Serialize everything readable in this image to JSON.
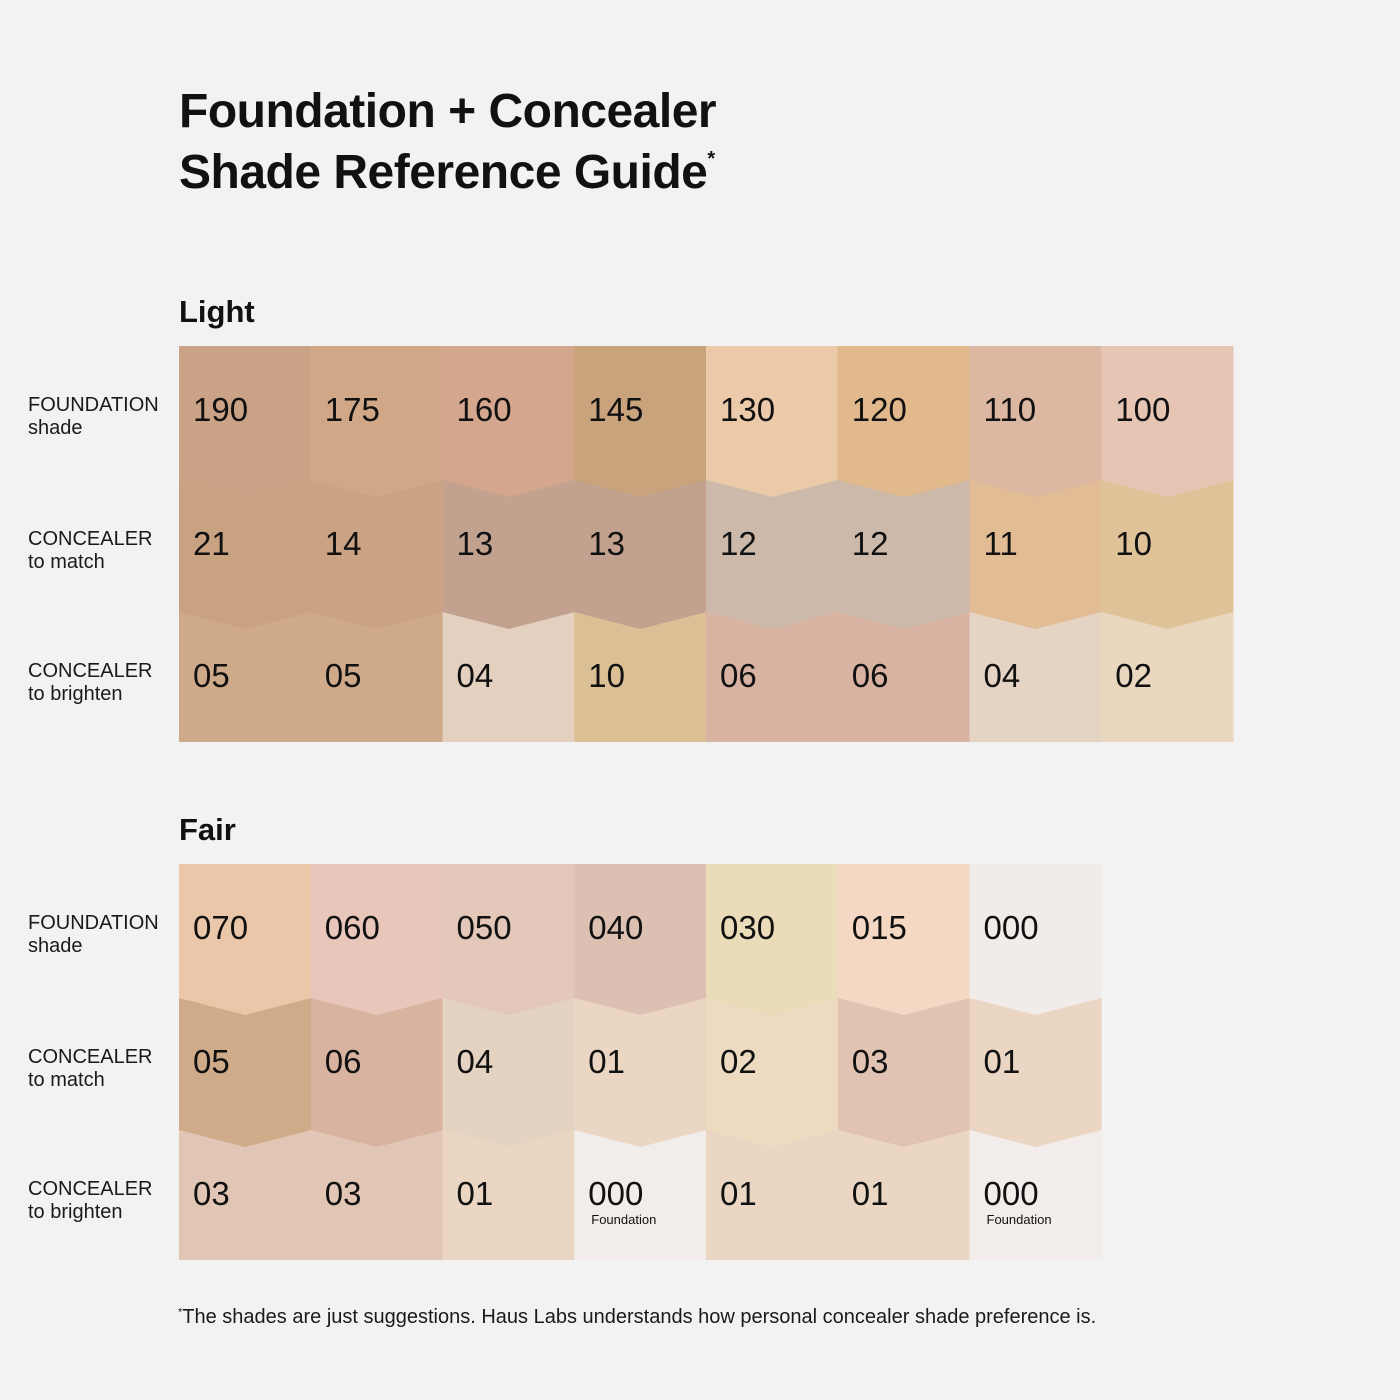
{
  "header": {
    "title": "Foundation + Concealer",
    "subtitle": "Shade Reference Guide",
    "asterisk": "*"
  },
  "row_labels": [
    {
      "line1": "FOUNDATION",
      "line2": "shade"
    },
    {
      "line1": "CONCEALER",
      "line2": "to match"
    },
    {
      "line1": "CONCEALER",
      "line2": "to brighten"
    }
  ],
  "sections": [
    {
      "title": "Light",
      "rows": [
        [
          {
            "v": "190",
            "c": "#caa285"
          },
          {
            "v": "175",
            "c": "#d0a888"
          },
          {
            "v": "160",
            "c": "#d5a68e"
          },
          {
            "v": "145",
            "c": "#c8a37c"
          },
          {
            "v": "130",
            "c": "#ebc9a9"
          },
          {
            "v": "120",
            "c": "#e2b98d"
          },
          {
            "v": "110",
            "c": "#dcb8a3"
          },
          {
            "v": "100",
            "c": "#e7c5b5"
          }
        ],
        [
          {
            "v": "21",
            "c": "#c9a282"
          },
          {
            "v": "14",
            "c": "#c9a383"
          },
          {
            "v": "13",
            "c": "#c2a18e"
          },
          {
            "v": "13",
            "c": "#c2a18e"
          },
          {
            "v": "12",
            "c": "#ccb9a9"
          },
          {
            "v": "12",
            "c": "#ccb9a9"
          },
          {
            "v": "11",
            "c": "#e2bc95"
          },
          {
            "v": "10",
            "c": "#dfc297"
          }
        ],
        [
          {
            "v": "05",
            "c": "#cfaa8a"
          },
          {
            "v": "05",
            "c": "#cfaa8a"
          },
          {
            "v": "04",
            "c": "#e4d0bf"
          },
          {
            "v": "10",
            "c": "#dcc095"
          },
          {
            "v": "06",
            "c": "#d9b3a1"
          },
          {
            "v": "06",
            "c": "#d9b3a1"
          },
          {
            "v": "04",
            "c": "#e5d3c3"
          },
          {
            "v": "02",
            "c": "#e9d8bf"
          }
        ]
      ]
    },
    {
      "title": "Fair",
      "rows": [
        [
          {
            "v": "070",
            "c": "#ebc7aa"
          },
          {
            "v": "060",
            "c": "#e9c6ba"
          },
          {
            "v": "050",
            "c": "#e3c7b8"
          },
          {
            "v": "040",
            "c": "#dcc0b2"
          },
          {
            "v": "030",
            "c": "#eadcb8"
          },
          {
            "v": "015",
            "c": "#f4d8c3"
          },
          {
            "v": "000",
            "c": "#f1ece9"
          }
        ],
        [
          {
            "v": "05",
            "c": "#cfab89"
          },
          {
            "v": "06",
            "c": "#d8b3a0"
          },
          {
            "v": "04",
            "c": "#e5d3c1"
          },
          {
            "v": "01",
            "c": "#ebd6c3"
          },
          {
            "v": "02",
            "c": "#ecdbc1"
          },
          {
            "v": "03",
            "c": "#e0c3b3"
          },
          {
            "v": "01",
            "c": "#ebd6c3"
          }
        ],
        [
          {
            "v": "03",
            "c": "#e1c6b5"
          },
          {
            "v": "03",
            "c": "#e1c6b5"
          },
          {
            "v": "01",
            "c": "#ead6c3"
          },
          {
            "v": "000",
            "c": "#f2ecea",
            "note": "Foundation"
          },
          {
            "v": "01",
            "c": "#ead6c3"
          },
          {
            "v": "01",
            "c": "#ead6c3"
          },
          {
            "v": "000",
            "c": "#f2ecea",
            "note": "Foundation"
          }
        ]
      ]
    }
  ],
  "footnote": {
    "asterisk": "*",
    "text": "The shades are just suggestions. Haus Labs understands how personal concealer shade preference is."
  }
}
